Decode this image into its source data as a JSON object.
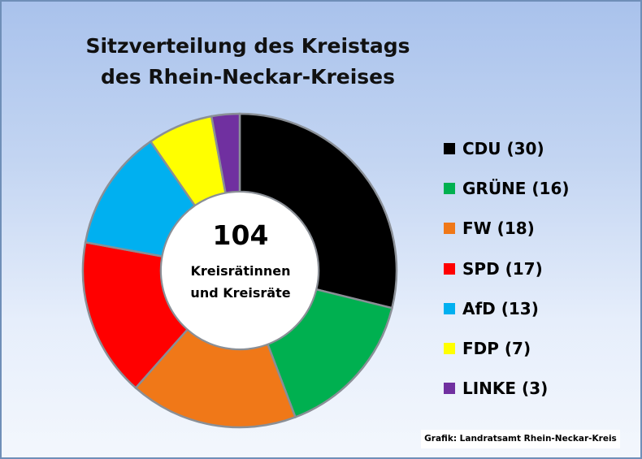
{
  "chart_data": {
    "type": "pie",
    "title_lines": [
      "Sitzverteilung des Kreistags",
      "des Rhein-Neckar-Kreises"
    ],
    "center_value": "104",
    "center_label_lines": [
      "Kreisrätinnen",
      "und Kreisräte"
    ],
    "legend_position": "right",
    "slices": [
      {
        "name": "CDU",
        "value": 30,
        "label": "CDU (30)",
        "color": "#000000"
      },
      {
        "name": "GRÜNE",
        "value": 16,
        "label": "GRÜNE (16)",
        "color": "#00b050"
      },
      {
        "name": "FW",
        "value": 18,
        "label": "FW (18)",
        "color": "#f07818"
      },
      {
        "name": "SPD",
        "value": 17,
        "label": "SPD (17)",
        "color": "#ff0000"
      },
      {
        "name": "AfD",
        "value": 13,
        "label": "AfD (13)",
        "color": "#00b0f0"
      },
      {
        "name": "FDP",
        "value": 7,
        "label": "FDP (7)",
        "color": "#ffff00"
      },
      {
        "name": "LINKE",
        "value": 3,
        "label": "LINKE (3)",
        "color": "#7030a0"
      }
    ]
  },
  "credit": "Grafik: Landratsamt  Rhein-Neckar-Kreis"
}
